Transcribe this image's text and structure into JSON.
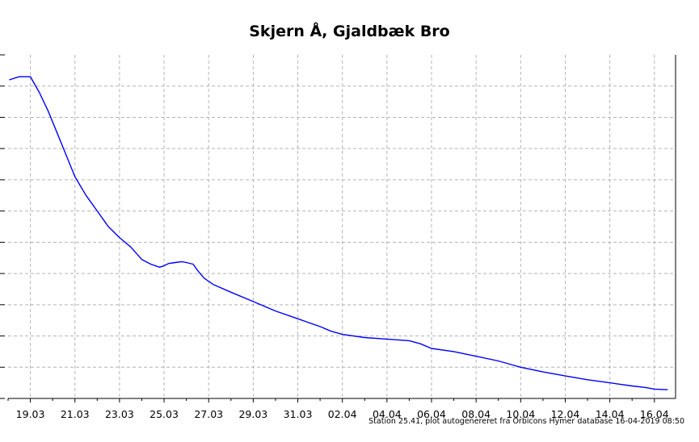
{
  "chart_data": {
    "type": "line",
    "title": "Skjern Å, Gjaldbæk Bro",
    "subtitle": "",
    "xlabel": "",
    "ylabel": "",
    "x_tick_labels": [
      "19.03",
      "21.03",
      "23.03",
      "25.03",
      "27.03",
      "29.03",
      "31.03",
      "02.04",
      "04.04",
      "06.04",
      "08.04",
      "10.04",
      "12.04",
      "14.04",
      "16.04"
    ],
    "x_tick_positions_days": [
      1,
      3,
      5,
      7,
      9,
      11,
      13,
      15,
      17,
      19,
      21,
      23,
      25,
      27,
      29
    ],
    "x_range_days": [
      0,
      29.95
    ],
    "y_range_index": [
      0,
      11
    ],
    "grid": true,
    "legend": "none",
    "line_color": "#0000ff",
    "series": [
      {
        "name": "",
        "x": [
          0.05,
          0.5,
          1.0,
          1.4,
          1.8,
          2.2,
          2.6,
          3.0,
          3.5,
          4.0,
          4.5,
          5.0,
          5.5,
          6.0,
          6.4,
          6.8,
          7.0,
          7.2,
          7.5,
          7.8,
          8.0,
          8.3,
          8.5,
          8.8,
          9.2,
          10.0,
          11.0,
          12.0,
          13.0,
          14.0,
          14.5,
          15.0,
          16.0,
          17.0,
          18.0,
          18.5,
          19.0,
          20.0,
          21.0,
          22.0,
          23.0,
          24.0,
          25.0,
          26.0,
          27.0,
          28.0,
          28.6,
          29.0,
          29.6
        ],
        "y": [
          10.2,
          10.3,
          10.3,
          9.8,
          9.2,
          8.5,
          7.8,
          7.1,
          6.5,
          6.0,
          5.5,
          5.15,
          4.85,
          4.45,
          4.3,
          4.2,
          4.25,
          4.32,
          4.35,
          4.38,
          4.35,
          4.3,
          4.1,
          3.85,
          3.65,
          3.4,
          3.1,
          2.8,
          2.55,
          2.3,
          2.15,
          2.05,
          1.95,
          1.9,
          1.85,
          1.75,
          1.6,
          1.5,
          1.35,
          1.2,
          1.0,
          0.85,
          0.72,
          0.6,
          0.5,
          0.4,
          0.35,
          0.3,
          0.28
        ]
      }
    ]
  },
  "footnote": "Station 25.41, plot autogenereret fra Orbicons Hymer database 16-04-2019 08:50"
}
